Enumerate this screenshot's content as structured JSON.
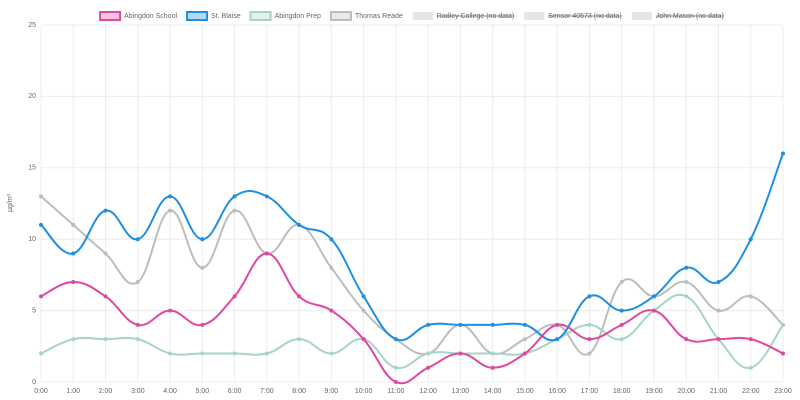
{
  "chart_data": {
    "type": "line",
    "y_label": "µg/m³",
    "categories": [
      "0:00",
      "1:00",
      "2:00",
      "3:00",
      "4:00",
      "5:00",
      "6:00",
      "7:00",
      "8:00",
      "9:00",
      "10:00",
      "11:00",
      "12:00",
      "13:00",
      "14:00",
      "15:00",
      "16:00",
      "17:00",
      "18:00",
      "19:00",
      "20:00",
      "21:00",
      "22:00",
      "23:00"
    ],
    "series": [
      {
        "name": "Abingdon School",
        "color": "#e0479e",
        "values": [
          6,
          7,
          6,
          4,
          5,
          4,
          6,
          9,
          6,
          5,
          3,
          0,
          1,
          2,
          1,
          2,
          4,
          3,
          4,
          5,
          3,
          3,
          3,
          2
        ]
      },
      {
        "name": "St. Blaise",
        "color": "#1e8fe1",
        "values": [
          11,
          9,
          12,
          10,
          13,
          10,
          13,
          13,
          11,
          10,
          6,
          3,
          4,
          4,
          4,
          4,
          3,
          6,
          5,
          6,
          8,
          7,
          10,
          16
        ]
      },
      {
        "name": "Abingdon Prep",
        "color": "#a6d4c6",
        "values": [
          2,
          3,
          3,
          3,
          2,
          2,
          2,
          2,
          3,
          2,
          3,
          1,
          2,
          2,
          2,
          2,
          3,
          4,
          3,
          5,
          6,
          3,
          1,
          4
        ]
      },
      {
        "name": "Thomas Reade",
        "color": "#bdbdbd",
        "values": [
          13,
          11,
          9,
          7,
          12,
          8,
          12,
          9,
          11,
          8,
          5,
          3,
          2,
          4,
          2,
          3,
          4,
          2,
          7,
          6,
          7,
          5,
          6,
          4
        ]
      }
    ],
    "hidden_series": [
      "Radley College (no data)",
      "Sensor 40573 (no data)",
      "John Mason (no data)"
    ],
    "hidden_color": "#e6e6e6",
    "ylim": [
      0,
      25
    ],
    "yticks": [
      0,
      5,
      10,
      15,
      20,
      25
    ],
    "grid": true,
    "legend": "top"
  }
}
